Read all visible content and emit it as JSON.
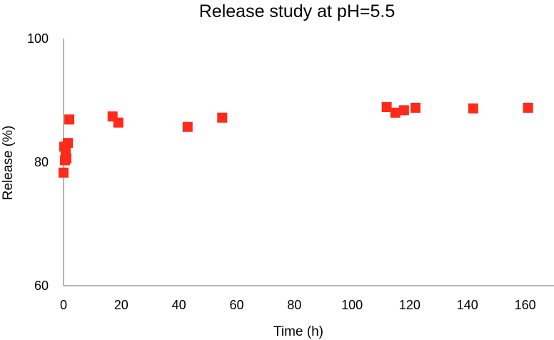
{
  "chart_data": {
    "type": "scatter",
    "title": "Release study at pH=5.5",
    "xlabel": "Time (h)",
    "ylabel": "Release (%)",
    "xlim": [
      0,
      170
    ],
    "ylim": [
      60,
      100
    ],
    "x_ticks": [
      "0",
      "20",
      "40",
      "60",
      "80",
      "100",
      "120",
      "140",
      "160"
    ],
    "y_ticks": [
      "60",
      "80",
      "100"
    ],
    "grid": false,
    "legend": "none",
    "marker_color": "#ff2a1a",
    "series": [
      {
        "x": [
          0.0,
          0.25,
          0.5,
          0.75,
          1.0,
          1.5,
          2.0,
          17.0,
          19.0,
          43.0,
          55.0,
          112.0,
          115.0,
          118.0,
          122.0,
          142.0,
          161.0
        ],
        "y": [
          78.3,
          82.5,
          80.3,
          81.5,
          80.6,
          83.1,
          86.9,
          87.4,
          86.4,
          85.7,
          87.2,
          88.9,
          88.0,
          88.4,
          88.8,
          88.7,
          88.8
        ]
      }
    ]
  }
}
